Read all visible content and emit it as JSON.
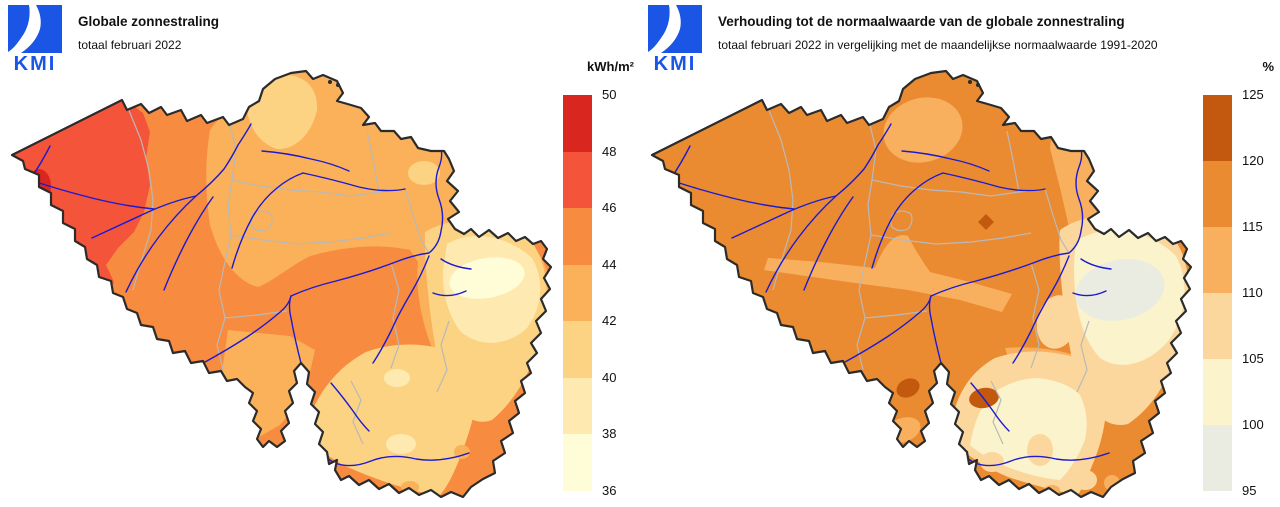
{
  "panels": [
    {
      "logo": {
        "text": "KMI",
        "color": "#1a55e5"
      },
      "title": "Globale zonnestraling",
      "subtitle": "totaal februari 2022",
      "colorbar": {
        "unit": "kWh/m²",
        "tick_labels": [
          "50",
          "48",
          "46",
          "44",
          "42",
          "40",
          "38",
          "36"
        ],
        "block_colors_top_to_bottom": [
          "#d9261f",
          "#f4543a",
          "#f78b40",
          "#fab159",
          "#fcd283",
          "#feeab0",
          "#fffcd8"
        ]
      },
      "map": {
        "legend_levels": [
          "36-38",
          "38-40",
          "40-42",
          "42-44",
          "44-46",
          "46-48",
          "48-50"
        ],
        "level_colors": {
          "36-38": "#fffcd8",
          "38-40": "#feeab0",
          "40-42": "#fcd283",
          "42-44": "#fab159",
          "44-46": "#f78b40",
          "46-48": "#f4543a",
          "48-50": "#d9261f"
        },
        "base_level": "44-46"
      }
    },
    {
      "logo": {
        "text": "KMI",
        "color": "#1a55e5"
      },
      "title": "Verhouding tot de normaalwaarde van de globale zonnestraling",
      "subtitle": "totaal februari 2022 in vergelijking met de maandelijkse normaalwaarde 1991-2020",
      "colorbar": {
        "unit": "%",
        "tick_labels": [
          "125",
          "120",
          "115",
          "110",
          "105",
          "100",
          "95"
        ],
        "block_colors_top_to_bottom": [
          "#c2590f",
          "#eb8b31",
          "#f9b05e",
          "#fbd79e",
          "#faf3cb",
          "#eaece1"
        ]
      },
      "map": {
        "legend_levels": [
          "95-100",
          "100-105",
          "105-110",
          "110-115",
          "115-120",
          "120-125"
        ],
        "level_colors": {
          "95-100": "#eaece1",
          "100-105": "#faf3cb",
          "105-110": "#fbd79e",
          "110-115": "#f9b05e",
          "115-120": "#eb8b31",
          "120-125": "#c2590f"
        },
        "base_level": "115-120"
      }
    }
  ],
  "map_style": {
    "river_color": "#1b1bd1",
    "province_border_color": "#b9b9b9",
    "country_outline_color": "#2b2b2b",
    "background": "#ffffff"
  }
}
